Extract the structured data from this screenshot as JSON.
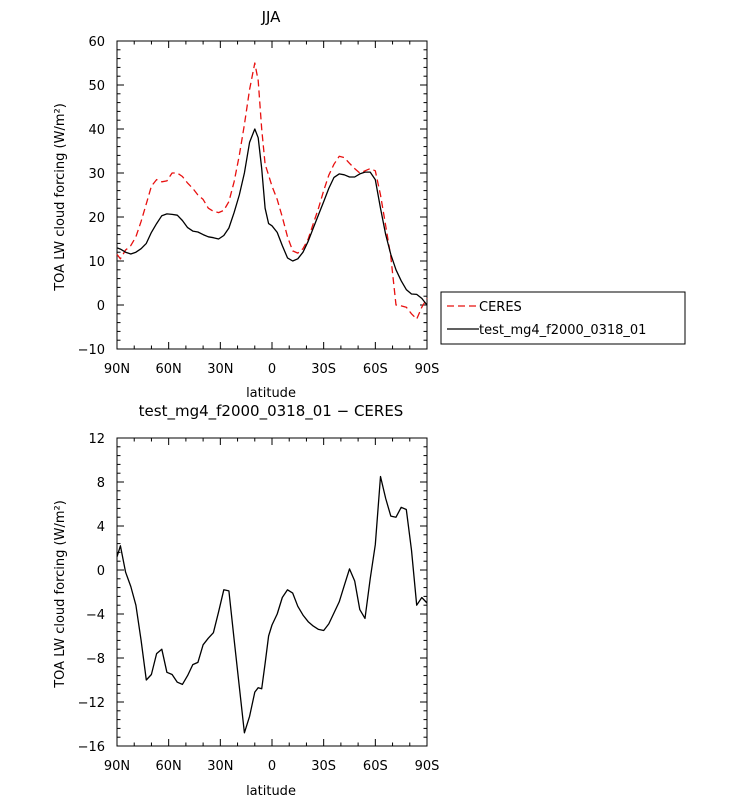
{
  "chart_data": [
    {
      "type": "line",
      "title": "JJA",
      "xlabel": "latitude",
      "ylabel": "TOA LW cloud forcing (W/m²)",
      "xlim": [
        90,
        -90
      ],
      "ylim": [
        -10,
        60
      ],
      "x_ticks": [
        90,
        60,
        30,
        0,
        -30,
        -60,
        -90
      ],
      "x_tick_labels": [
        "90N",
        "60N",
        "30N",
        "0",
        "30S",
        "60S",
        "90S"
      ],
      "y_ticks": [
        -10,
        0,
        10,
        20,
        30,
        40,
        50,
        60
      ],
      "y_tick_labels": [
        "−10",
        "0",
        "10",
        "20",
        "30",
        "40",
        "50",
        "60"
      ],
      "legend_position": "right",
      "series": [
        {
          "name": "CERES",
          "color": "#e8100f",
          "dash": "dashed",
          "x": [
            90,
            88,
            85,
            82,
            79,
            76,
            73,
            70,
            67,
            64,
            61,
            58,
            55,
            52,
            49,
            46,
            43,
            40,
            37,
            34,
            31,
            28,
            25,
            22,
            19,
            16,
            13,
            10,
            8,
            6,
            4,
            2,
            0,
            -3,
            -6,
            -9,
            -12,
            -15,
            -18,
            -21,
            -24,
            -27,
            -30,
            -33,
            -36,
            -39,
            -42,
            -45,
            -48,
            -51,
            -54,
            -57,
            -60,
            -63,
            -66,
            -69,
            -72,
            -75,
            -78,
            -81,
            -84,
            -87,
            -90
          ],
          "y": [
            11.5,
            10.5,
            12.5,
            13.5,
            15.5,
            19,
            23,
            27,
            28.5,
            28,
            28.2,
            30,
            30,
            29.2,
            27.7,
            26.5,
            25,
            24,
            22,
            21.3,
            21,
            21.5,
            23.5,
            28,
            34,
            41,
            49,
            55,
            51,
            40,
            32,
            29.5,
            27,
            24,
            20,
            15.5,
            12.3,
            11.8,
            12.8,
            15,
            18.5,
            22,
            26,
            29.5,
            32,
            33.8,
            33.5,
            32.2,
            31,
            30,
            30.5,
            31,
            30.5,
            25,
            18,
            11,
            0,
            -0.2,
            -0.5,
            -2,
            -3.2,
            -0.5,
            1.5
          ]
        },
        {
          "name": "test_mg4_f2000_0318_01",
          "color": "#000000",
          "dash": "solid",
          "x": [
            90,
            88,
            85,
            82,
            79,
            76,
            73,
            70,
            67,
            64,
            61,
            58,
            55,
            52,
            49,
            46,
            43,
            40,
            37,
            34,
            31,
            28,
            25,
            22,
            19,
            16,
            13,
            10,
            8,
            6,
            4,
            2,
            0,
            -3,
            -6,
            -9,
            -12,
            -15,
            -18,
            -21,
            -24,
            -27,
            -30,
            -33,
            -36,
            -39,
            -42,
            -45,
            -48,
            -51,
            -54,
            -57,
            -60,
            -63,
            -66,
            -69,
            -72,
            -75,
            -78,
            -81,
            -84,
            -87,
            -90
          ],
          "y": [
            13,
            12.7,
            12,
            11.6,
            12,
            12.8,
            14,
            16.5,
            18.5,
            20.3,
            20.7,
            20.6,
            20.4,
            19.2,
            17.6,
            16.8,
            16.6,
            16,
            15.5,
            15.3,
            15,
            15.8,
            17.5,
            21,
            25,
            30,
            37,
            40,
            38,
            31,
            22,
            18.5,
            18,
            16.5,
            13.5,
            10.7,
            10,
            10.5,
            12,
            14.5,
            17.5,
            20.5,
            23.5,
            26.5,
            29,
            29.8,
            29.6,
            29.1,
            29.1,
            29.8,
            30.2,
            30.2,
            28.5,
            22,
            16,
            11.5,
            8,
            5.5,
            3.5,
            2.5,
            2.4,
            1.5,
            0
          ]
        }
      ]
    },
    {
      "type": "line",
      "title": "test_mg4_f2000_0318_01 − CERES",
      "xlabel": "latitude",
      "ylabel": "TOA LW cloud forcing (W/m²)",
      "xlim": [
        90,
        -90
      ],
      "ylim": [
        -16,
        12
      ],
      "x_ticks": [
        90,
        60,
        30,
        0,
        -30,
        -60,
        -90
      ],
      "x_tick_labels": [
        "90N",
        "60N",
        "30N",
        "0",
        "30S",
        "60S",
        "90S"
      ],
      "y_ticks": [
        -16,
        -12,
        -8,
        -4,
        0,
        4,
        8,
        12
      ],
      "y_tick_labels": [
        "−16",
        "−12",
        "−8",
        "−4",
        "0",
        "4",
        "8",
        "12"
      ],
      "series": [
        {
          "color": "#000000",
          "dash": "solid",
          "x": [
            90,
            88,
            85,
            82,
            79,
            76,
            73,
            70,
            67,
            64,
            61,
            58,
            55,
            52,
            49,
            46,
            43,
            40,
            37,
            34,
            31,
            28,
            25,
            22,
            19,
            16,
            13,
            10,
            8,
            6,
            4,
            2,
            0,
            -3,
            -6,
            -9,
            -12,
            -15,
            -18,
            -21,
            -24,
            -27,
            -30,
            -33,
            -36,
            -39,
            -42,
            -45,
            -48,
            -51,
            -54,
            -57,
            -60,
            -63,
            -66,
            -69,
            -72,
            -75,
            -78,
            -81,
            -84,
            -87,
            -90
          ],
          "y": [
            1.2,
            2.2,
            -0.2,
            -1.5,
            -3.2,
            -6.4,
            -10,
            -9.5,
            -7.6,
            -7.2,
            -9.3,
            -9.5,
            -10.2,
            -10.4,
            -9.6,
            -8.6,
            -8.4,
            -6.8,
            -6.2,
            -5.7,
            -3.8,
            -1.8,
            -1.9,
            -6.3,
            -10.6,
            -14.8,
            -13.3,
            -11.1,
            -10.7,
            -10.8,
            -8.5,
            -6.0,
            -5.0,
            -4.0,
            -2.5,
            -1.8,
            -2.1,
            -3.3,
            -4.1,
            -4.7,
            -5.1,
            -5.4,
            -5.5,
            -4.9,
            -3.9,
            -2.9,
            -1.4,
            0.1,
            -1.0,
            -3.6,
            -4.4,
            -0.8,
            2.3,
            8.5,
            6.5,
            4.9,
            4.8,
            5.7,
            5.5,
            1.8,
            -3.2,
            -2.5,
            -3.0
          ]
        }
      ]
    }
  ]
}
